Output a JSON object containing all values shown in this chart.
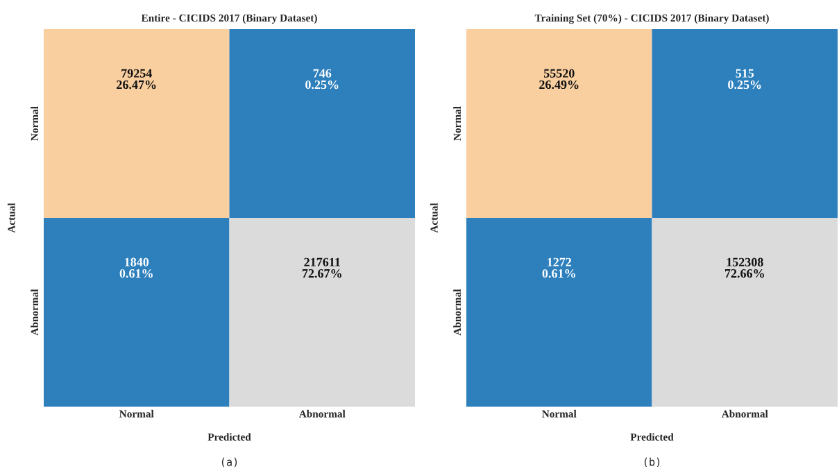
{
  "chart_data": [
    {
      "type": "heatmap",
      "title": "Entire - CICIDS 2017 (Binary Dataset)",
      "xlabel": "Predicted",
      "ylabel": "Actual",
      "categories": [
        "Normal",
        "Abnormal"
      ],
      "y_categories": [
        "Normal",
        "Abnormal"
      ],
      "cells": [
        [
          79254,
          746
        ],
        [
          1840,
          217611
        ]
      ],
      "data_labels": true,
      "colors": [
        "#2e80bd",
        "#facfa0",
        "#dcdbdb"
      ],
      "annotations": [
        "26.47%",
        "0.25%",
        "0.61%",
        "72.67%",
        "(a)"
      ]
    },
    {
      "type": "heatmap",
      "title": "Training Set (70%) - CICIDS 2017 (Binary Dataset)",
      "xlabel": "Predicted",
      "ylabel": "Actual",
      "categories": [
        "Normal",
        "Abnormal"
      ],
      "y_categories": [
        "Normal",
        "Abnormal"
      ],
      "cells": [
        [
          55520,
          515
        ],
        [
          1272,
          152308
        ]
      ],
      "data_labels": true,
      "colors": [
        "#2e80bd",
        "#facfa0",
        "#dcdbdb"
      ],
      "annotations": [
        "26.49%",
        "0.25%",
        "0.61%",
        "72.66%",
        "(b)"
      ]
    }
  ]
}
